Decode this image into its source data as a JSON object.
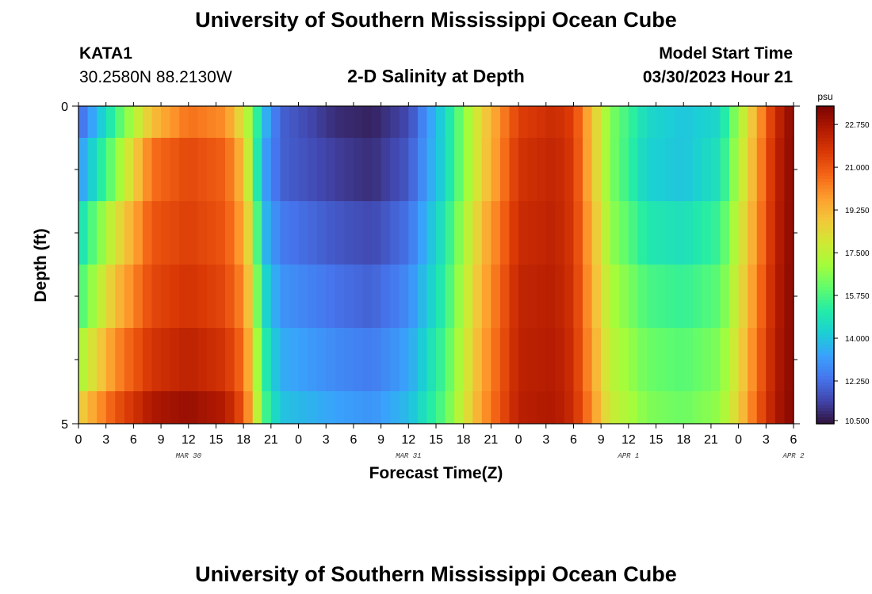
{
  "header": {
    "title": "University of Southern Mississippi Ocean Cube",
    "station_name": "KATA1",
    "station_coords": "30.2580N  88.2130W",
    "subtitle": "2-D Salinity at Depth",
    "model_start_label": "Model Start Time",
    "model_start_value": "03/30/2023 Hour 21"
  },
  "footer": {
    "title": "University of Southern Mississippi Ocean Cube"
  },
  "chart_data": {
    "type": "heatmap",
    "title": "2-D Salinity at Depth",
    "xlabel": "Forecast Time(Z)",
    "ylabel": "Depth (ft)",
    "x_tick_labels": [
      "0",
      "3",
      "6",
      "9",
      "12",
      "15",
      "18",
      "21",
      "0",
      "3",
      "6",
      "9",
      "12",
      "15",
      "18",
      "21",
      "0",
      "3",
      "6",
      "9",
      "12",
      "15",
      "18",
      "21",
      "0",
      "3",
      "6"
    ],
    "date_labels": [
      {
        "label": "MAR 30",
        "hour": 12
      },
      {
        "label": "MAR 31",
        "hour": 36
      },
      {
        "label": "APR 1",
        "hour": 60
      },
      {
        "label": "APR 2",
        "hour": 78
      }
    ],
    "x_range_hours": [
      0,
      78
    ],
    "y_tick_labels": [
      "0",
      "5"
    ],
    "ylim": [
      0,
      5
    ],
    "depth_levels": 6,
    "colorbar": {
      "unit": "psu",
      "min": 10.5,
      "max": 23.5,
      "tick_labels": [
        "22.750",
        "21.000",
        "19.250",
        "17.500",
        "15.750",
        "14.000",
        "12.250",
        "10.500"
      ],
      "tick_values": [
        22.75,
        21.0,
        19.25,
        17.5,
        15.75,
        14.0,
        12.25,
        10.5
      ]
    },
    "colormap": [
      "#30123b",
      "#4145ab",
      "#4675ed",
      "#39a2fc",
      "#1bcfd4",
      "#24eca6",
      "#61fc6c",
      "#a4fc3b",
      "#d1e834",
      "#f3c63a",
      "#fe9b2d",
      "#f36315",
      "#d93806",
      "#b11901",
      "#7a0403"
    ],
    "keyframes_hours": [
      0,
      4,
      8,
      12,
      16,
      18,
      19,
      20,
      22,
      28,
      32,
      36,
      40,
      44,
      48,
      52,
      54,
      56,
      58,
      62,
      66,
      70,
      72,
      74,
      76,
      78
    ],
    "layers": [
      {
        "depth": "surface",
        "values": [
          12.0,
          15.5,
          19.0,
          20.5,
          20.0,
          18.0,
          16.5,
          14.0,
          12.0,
          11.0,
          10.8,
          11.5,
          14.5,
          18.5,
          21.5,
          22.0,
          21.5,
          19.0,
          16.5,
          14.5,
          14.0,
          14.5,
          17.0,
          19.5,
          22.0,
          23.3
        ]
      },
      {
        "depth": "1",
        "values": [
          13.0,
          16.5,
          20.5,
          21.3,
          20.8,
          19.0,
          16.5,
          13.5,
          12.0,
          11.3,
          11.0,
          11.8,
          14.5,
          18.5,
          21.8,
          22.2,
          21.6,
          19.0,
          16.5,
          14.3,
          14.0,
          14.8,
          17.3,
          19.7,
          22.2,
          23.3
        ]
      },
      {
        "depth": "2",
        "values": [
          14.5,
          18.0,
          21.0,
          21.5,
          21.0,
          19.5,
          17.5,
          14.0,
          12.5,
          11.8,
          11.5,
          12.3,
          15.0,
          19.0,
          22.0,
          22.3,
          21.7,
          19.3,
          16.8,
          15.0,
          14.7,
          15.5,
          17.7,
          19.9,
          22.3,
          23.3
        ]
      },
      {
        "depth": "3",
        "values": [
          15.5,
          19.0,
          21.3,
          21.8,
          21.3,
          20.0,
          18.0,
          14.8,
          13.0,
          12.3,
          12.0,
          12.8,
          15.3,
          19.3,
          22.2,
          22.4,
          21.8,
          19.5,
          17.2,
          15.7,
          15.4,
          16.0,
          18.0,
          20.2,
          22.4,
          23.3
        ]
      },
      {
        "depth": "4",
        "values": [
          17.0,
          20.0,
          21.8,
          22.3,
          21.8,
          20.5,
          18.5,
          15.5,
          13.5,
          12.8,
          12.5,
          13.3,
          15.7,
          19.5,
          22.3,
          22.5,
          21.9,
          19.7,
          17.5,
          16.2,
          15.9,
          16.5,
          18.3,
          20.5,
          22.5,
          23.3
        ]
      },
      {
        "depth": "5",
        "values": [
          18.5,
          21.0,
          22.6,
          23.0,
          22.5,
          21.0,
          19.0,
          16.0,
          14.0,
          13.3,
          13.0,
          13.8,
          16.0,
          19.7,
          22.4,
          22.6,
          22.0,
          20.0,
          17.8,
          16.5,
          16.2,
          16.8,
          18.6,
          20.8,
          22.6,
          23.3
        ]
      }
    ]
  }
}
